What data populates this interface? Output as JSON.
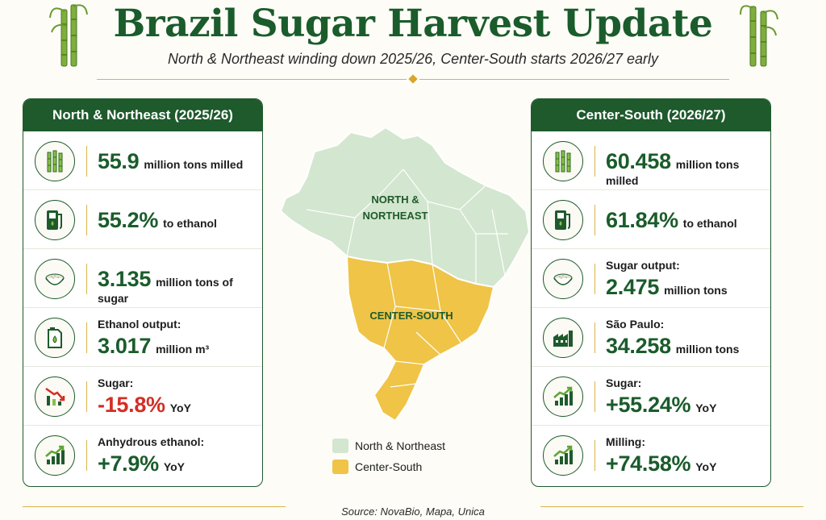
{
  "header": {
    "title": "Brazil Sugar Harvest Update",
    "subtitle": "North & Northeast winding down 2025/26, Center-South starts 2026/27 early"
  },
  "left_panel": {
    "title": "North & Northeast (2025/26)",
    "rows": [
      {
        "icon": "sugarcane-icon",
        "value": "55.9",
        "unit": "million tons milled"
      },
      {
        "icon": "fuel-pump-icon",
        "value": "55.2%",
        "unit": "to ethanol"
      },
      {
        "icon": "sugar-bowl-icon",
        "value": "3.135",
        "unit": "million tons of sugar"
      },
      {
        "icon": "ethanol-can-icon",
        "label": "Ethanol output:",
        "value": "3.017",
        "unit": "million m³"
      },
      {
        "icon": "chart-down-icon",
        "label": "Sugar:",
        "value": "-15.8%",
        "unit": "YoY"
      },
      {
        "icon": "chart-up-icon",
        "label": "Anhydrous ethanol:",
        "value": "+7.9%",
        "unit": "YoY"
      }
    ]
  },
  "right_panel": {
    "title": "Center-South (2026/27)",
    "rows": [
      {
        "icon": "sugarcane-icon",
        "value": "60.458",
        "unit": "million tons milled"
      },
      {
        "icon": "fuel-pump-icon",
        "value": "61.84%",
        "unit": "to ethanol"
      },
      {
        "icon": "sugar-bowl-icon",
        "label": "Sugar output:",
        "value": "2.475",
        "unit": "million tons"
      },
      {
        "icon": "factory-icon",
        "label": "São Paulo:",
        "value": "34.258",
        "unit": "million tons"
      },
      {
        "icon": "chart-up-icon",
        "label": "Sugar:",
        "value": "+55.24%",
        "unit": "YoY"
      },
      {
        "icon": "chart-up-icon",
        "label": "Milling:",
        "value": "+74.58%",
        "unit": "YoY"
      }
    ]
  },
  "map": {
    "region_north": "NORTH &",
    "region_north_2": "NORTHEAST",
    "region_south": "CENTER-SOUTH",
    "colors": {
      "north": "#d3e6cf",
      "south": "#efc447",
      "border": "#ffffff"
    }
  },
  "legend": {
    "items": [
      {
        "label": "North & Northeast",
        "color": "#d3e6cf"
      },
      {
        "label": "Center-South",
        "color": "#efc447"
      }
    ]
  },
  "footer": {
    "source": "Source: NovaBio, Mapa, Unica"
  },
  "colors": {
    "primary": "#1e5a2c",
    "accent": "#d9b44a",
    "negative": "#d32f25"
  }
}
